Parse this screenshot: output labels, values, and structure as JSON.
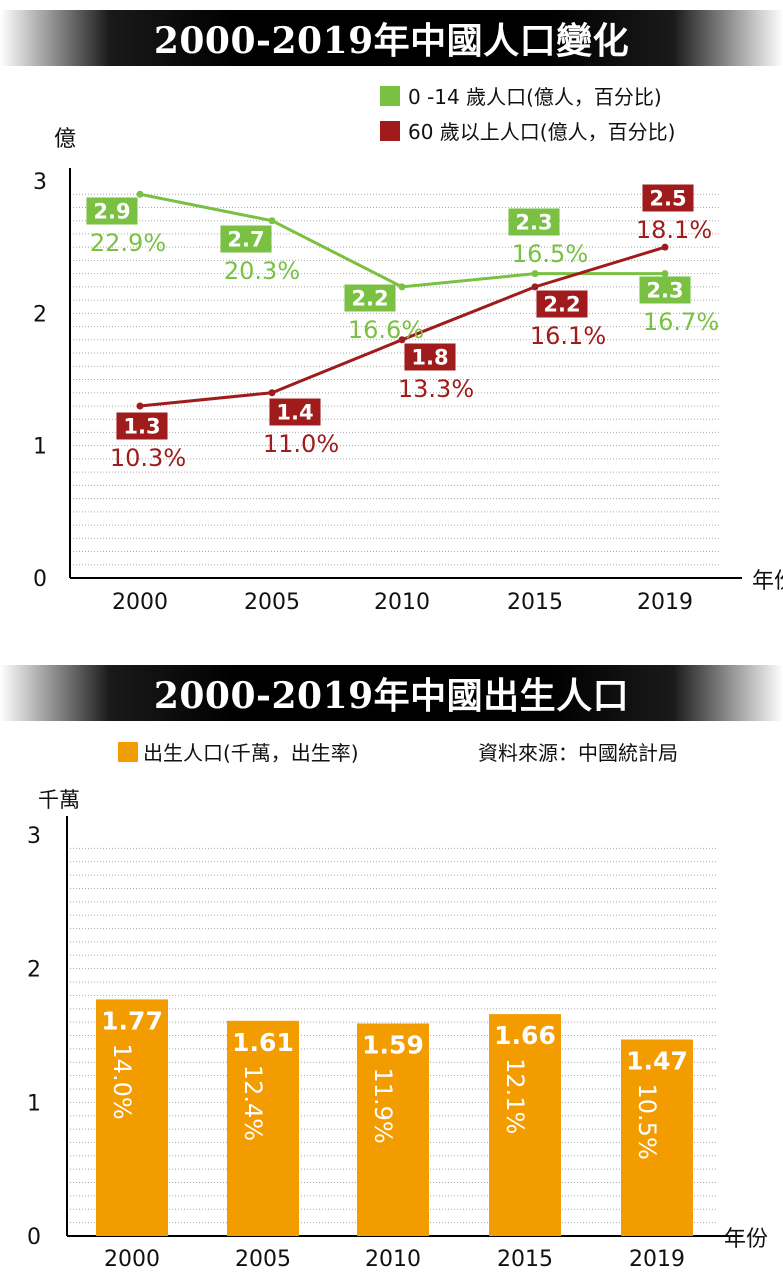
{
  "chart_data": [
    {
      "type": "line",
      "title": "2000-2019年中國人口變化",
      "ylabel": "億",
      "xlabel": "年份",
      "categories": [
        "2000",
        "2005",
        "2010",
        "2015",
        "2019"
      ],
      "ylim": [
        0,
        3
      ],
      "yticks": [
        "0",
        "1",
        "2",
        "3"
      ],
      "grid": true,
      "legend_position": "top-right",
      "series": [
        {
          "name": "0 -14 歲人口(億人，百分比)",
          "color": "#7ac143",
          "values": [
            2.9,
            2.7,
            2.2,
            2.3,
            2.3
          ],
          "value_labels": [
            "2.9",
            "2.7",
            "2.2",
            "2.3",
            "2.3"
          ],
          "percent_labels": [
            "22.9%",
            "20.3%",
            "16.6%",
            "16.5%",
            "16.7%"
          ]
        },
        {
          "name": "60 歲以上人口(億人，百分比)",
          "color": "#a01c1c",
          "values": [
            1.3,
            1.4,
            1.8,
            2.2,
            2.5
          ],
          "value_labels": [
            "1.3",
            "1.4",
            "1.8",
            "2.2",
            "2.5"
          ],
          "percent_labels": [
            "10.3%",
            "11.0%",
            "13.3%",
            "16.1%",
            "18.1%"
          ]
        }
      ]
    },
    {
      "type": "bar",
      "title": "2000-2019年中國出生人口",
      "ylabel": "千萬",
      "xlabel": "年份",
      "categories": [
        "2000",
        "2005",
        "2010",
        "2015",
        "2019"
      ],
      "ylim": [
        0,
        3
      ],
      "yticks": [
        "0",
        "1",
        "2",
        "3"
      ],
      "grid": true,
      "legend_position": "top-left",
      "source": "資料來源：中國統計局",
      "series": [
        {
          "name": "出生人口(千萬，出生率)",
          "color": "#f29c00",
          "values": [
            1.77,
            1.61,
            1.59,
            1.66,
            1.47
          ],
          "value_labels": [
            "1.77",
            "1.61",
            "1.59",
            "1.66",
            "1.47"
          ],
          "rate_labels": [
            "14.0%",
            "12.4%",
            "11.9%",
            "12.1%",
            "10.5%"
          ]
        }
      ]
    }
  ]
}
